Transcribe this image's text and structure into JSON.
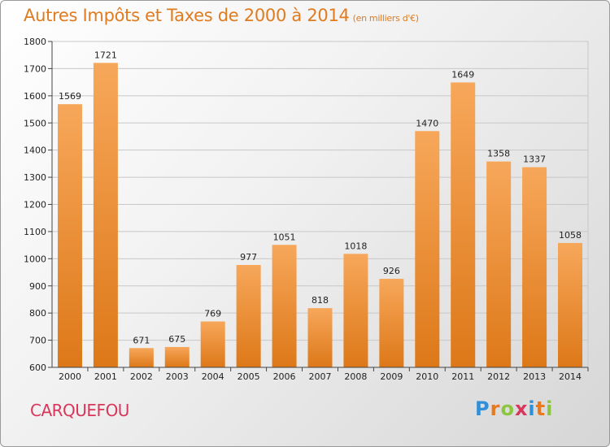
{
  "header": {
    "title": "Autres Impôts et Taxes de 2000 à 2014",
    "subtitle": "(en milliers d'€)"
  },
  "footer": {
    "city": "CARQUEFOU",
    "logo_letters": [
      "P",
      "r",
      "o",
      "x",
      "i",
      "t",
      "i"
    ],
    "logo_colors": [
      "#2f8fd8",
      "#e8791d",
      "#8cc63f",
      "#d8365b",
      "#2f8fd8",
      "#e8791d",
      "#8cc63f"
    ]
  },
  "colors": {
    "bar_light": "#f7a75a",
    "bar_dark": "#dd7818",
    "title": "#e07b1f",
    "city": "#d8365b",
    "grid": "#c8c8c8",
    "axis": "#444444"
  },
  "chart_data": {
    "type": "bar",
    "title": "Autres Impôts et Taxes de 2000 à 2014",
    "subtitle": "(en milliers d'€)",
    "categories": [
      "2000",
      "2001",
      "2002",
      "2003",
      "2004",
      "2005",
      "2006",
      "2007",
      "2008",
      "2009",
      "2010",
      "2011",
      "2012",
      "2013",
      "2014"
    ],
    "values": [
      1569,
      1721,
      671,
      675,
      769,
      977,
      1051,
      818,
      1018,
      926,
      1470,
      1649,
      1358,
      1337,
      1058
    ],
    "ylim": [
      600,
      1800
    ],
    "yticks": [
      600,
      700,
      800,
      900,
      1000,
      1100,
      1200,
      1300,
      1400,
      1500,
      1600,
      1700,
      1800
    ],
    "grid": true,
    "data_labels": true
  }
}
